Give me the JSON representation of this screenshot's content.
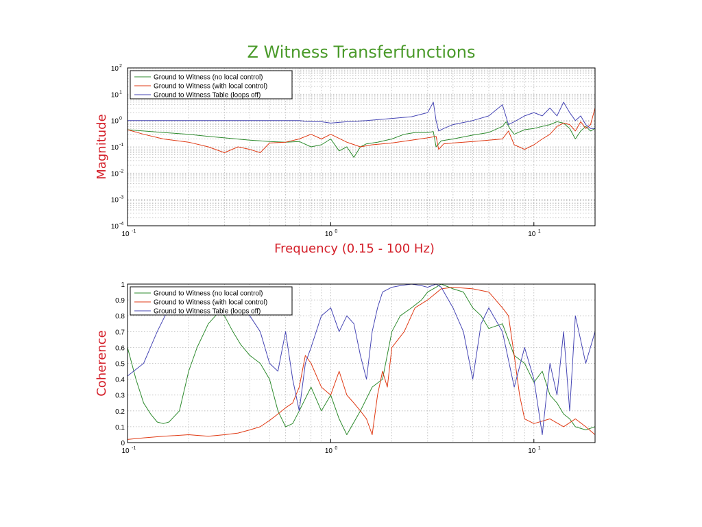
{
  "title": "Z Witness Transferfunctions",
  "colors": {
    "title": "#4a9a2a",
    "axis_label": "#d4202a",
    "series": [
      "#2e8b2e",
      "#e03a14",
      "#4646b4"
    ]
  },
  "chart_data": [
    {
      "type": "line",
      "name": "magnitude",
      "title": "Z Witness Transferfunctions",
      "xlabel": "Frequency (0.15 - 100 Hz)",
      "ylabel": "Magnitude",
      "xscale": "log",
      "yscale": "log",
      "xlim": [
        0.1,
        20
      ],
      "ylim": [
        0.0001,
        100
      ],
      "grid": true,
      "legend_position": "top-left",
      "x_ticks": [
        {
          "base": "10",
          "exp": "-1"
        },
        {
          "base": "10",
          "exp": "0"
        },
        {
          "base": "10",
          "exp": "1"
        }
      ],
      "y_ticks": [
        {
          "base": "10",
          "exp": "2"
        },
        {
          "base": "10",
          "exp": "1"
        },
        {
          "base": "10",
          "exp": "0"
        },
        {
          "base": "10",
          "exp": "-1"
        },
        {
          "base": "10",
          "exp": "-2"
        },
        {
          "base": "10",
          "exp": "-3"
        },
        {
          "base": "10",
          "exp": "-4"
        }
      ],
      "series": [
        {
          "name": "Ground to Witness (no local control)",
          "x": [
            0.1,
            0.12,
            0.15,
            0.2,
            0.25,
            0.3,
            0.4,
            0.5,
            0.6,
            0.7,
            0.8,
            0.9,
            1.0,
            1.1,
            1.2,
            1.3,
            1.4,
            1.5,
            1.7,
            2.0,
            2.3,
            2.6,
            3.0,
            3.2,
            3.3,
            3.5,
            4.0,
            5.0,
            6.0,
            7.0,
            7.3,
            7.6,
            8.0,
            9.0,
            10.0,
            11.0,
            12.0,
            13.0,
            14.0,
            15.0,
            16.0,
            17.0,
            18.0,
            19.0,
            20.0
          ],
          "y": [
            0.45,
            0.4,
            0.35,
            0.3,
            0.25,
            0.22,
            0.18,
            0.16,
            0.15,
            0.16,
            0.1,
            0.12,
            0.2,
            0.07,
            0.1,
            0.04,
            0.1,
            0.13,
            0.15,
            0.2,
            0.3,
            0.35,
            0.35,
            0.38,
            0.1,
            0.17,
            0.2,
            0.28,
            0.35,
            0.6,
            0.9,
            0.5,
            0.3,
            0.45,
            0.5,
            0.6,
            0.7,
            0.9,
            0.8,
            0.5,
            0.2,
            0.4,
            0.6,
            0.4,
            0.5
          ]
        },
        {
          "name": "Ground to Witness (with local control)",
          "x": [
            0.1,
            0.12,
            0.15,
            0.2,
            0.25,
            0.3,
            0.35,
            0.4,
            0.45,
            0.5,
            0.6,
            0.7,
            0.8,
            0.9,
            1.0,
            1.2,
            1.4,
            1.6,
            2.0,
            2.5,
            3.0,
            3.3,
            3.4,
            3.6,
            4.0,
            5.0,
            6.0,
            7.0,
            7.5,
            8.0,
            9.0,
            10.0,
            11.0,
            12.0,
            13.0,
            14.0,
            15.0,
            16.0,
            17.0,
            18.0,
            19.0,
            20.0
          ],
          "y": [
            0.45,
            0.3,
            0.2,
            0.15,
            0.1,
            0.06,
            0.1,
            0.08,
            0.06,
            0.14,
            0.15,
            0.2,
            0.3,
            0.2,
            0.3,
            0.15,
            0.1,
            0.12,
            0.14,
            0.18,
            0.22,
            0.25,
            0.08,
            0.13,
            0.14,
            0.16,
            0.18,
            0.2,
            0.4,
            0.12,
            0.08,
            0.12,
            0.2,
            0.3,
            0.6,
            0.8,
            0.7,
            0.4,
            0.9,
            0.5,
            0.7,
            3.0
          ]
        },
        {
          "name": "Ground to Witness Table (loops off)",
          "x": [
            0.1,
            0.15,
            0.2,
            0.3,
            0.4,
            0.5,
            0.6,
            0.7,
            0.8,
            0.9,
            1.0,
            1.2,
            1.5,
            2.0,
            2.5,
            3.0,
            3.2,
            3.3,
            3.4,
            3.6,
            4.0,
            5.0,
            6.0,
            7.0,
            7.5,
            8.0,
            9.0,
            10.0,
            11.0,
            12.0,
            13.0,
            14.0,
            15.0,
            16.0,
            17.0,
            18.0,
            19.0,
            20.0
          ],
          "y": [
            1.0,
            1.0,
            1.0,
            1.0,
            1.0,
            1.0,
            1.0,
            1.0,
            0.9,
            0.9,
            0.8,
            0.9,
            1.0,
            1.2,
            1.4,
            2.0,
            5.0,
            1.0,
            0.4,
            0.5,
            0.7,
            1.0,
            1.5,
            4.0,
            0.7,
            0.9,
            1.5,
            2.0,
            1.5,
            3.0,
            1.5,
            5.0,
            2.0,
            1.0,
            1.5,
            0.7,
            0.5,
            0.5
          ]
        }
      ]
    },
    {
      "type": "line",
      "name": "coherence",
      "title": "",
      "xlabel": "",
      "ylabel": "Coherence",
      "xscale": "log",
      "yscale": "linear",
      "xlim": [
        0.1,
        20
      ],
      "ylim": [
        0,
        1
      ],
      "grid": true,
      "legend_position": "top-left",
      "x_ticks": [
        {
          "base": "10",
          "exp": "-1"
        },
        {
          "base": "10",
          "exp": "0"
        },
        {
          "base": "10",
          "exp": "1"
        }
      ],
      "y_ticks": [
        "0",
        "0.1",
        "0.2",
        "0.3",
        "0.4",
        "0.5",
        "0.6",
        "0.7",
        "0.8",
        "0.9",
        "1"
      ],
      "series": [
        {
          "name": "Ground to Witness (no local control)",
          "x": [
            0.1,
            0.11,
            0.12,
            0.13,
            0.14,
            0.15,
            0.16,
            0.18,
            0.2,
            0.22,
            0.25,
            0.28,
            0.3,
            0.33,
            0.36,
            0.4,
            0.45,
            0.5,
            0.55,
            0.6,
            0.65,
            0.7,
            0.8,
            0.9,
            1.0,
            1.1,
            1.2,
            1.4,
            1.6,
            1.8,
            2.0,
            2.2,
            2.5,
            2.8,
            3.0,
            3.3,
            3.5,
            4.0,
            4.5,
            5.0,
            5.5,
            6.0,
            7.0,
            8.0,
            9.0,
            10.0,
            11.0,
            12.0,
            13.0,
            14.0,
            15.0,
            16.0,
            18.0,
            20.0
          ],
          "y": [
            0.6,
            0.4,
            0.25,
            0.18,
            0.13,
            0.12,
            0.13,
            0.2,
            0.45,
            0.6,
            0.75,
            0.82,
            0.8,
            0.7,
            0.62,
            0.55,
            0.5,
            0.4,
            0.2,
            0.1,
            0.12,
            0.2,
            0.35,
            0.2,
            0.3,
            0.15,
            0.05,
            0.2,
            0.35,
            0.4,
            0.7,
            0.8,
            0.85,
            0.9,
            0.95,
            0.98,
            1.0,
            0.97,
            0.95,
            0.85,
            0.8,
            0.72,
            0.75,
            0.55,
            0.5,
            0.38,
            0.45,
            0.3,
            0.25,
            0.18,
            0.15,
            0.1,
            0.08,
            0.1
          ]
        },
        {
          "name": "Ground to Witness (with local control)",
          "x": [
            0.1,
            0.12,
            0.15,
            0.2,
            0.25,
            0.3,
            0.35,
            0.4,
            0.45,
            0.5,
            0.55,
            0.6,
            0.65,
            0.7,
            0.75,
            0.8,
            0.9,
            1.0,
            1.1,
            1.2,
            1.3,
            1.4,
            1.5,
            1.6,
            1.7,
            1.8,
            1.9,
            2.0,
            2.3,
            2.6,
            3.0,
            3.5,
            4.0,
            5.0,
            6.0,
            7.0,
            7.5,
            8.0,
            8.5,
            9.0,
            10.0,
            12.0,
            14.0,
            16.0,
            18.0,
            20.0
          ],
          "y": [
            0.02,
            0.03,
            0.04,
            0.05,
            0.04,
            0.05,
            0.06,
            0.08,
            0.1,
            0.14,
            0.18,
            0.22,
            0.25,
            0.35,
            0.55,
            0.5,
            0.35,
            0.3,
            0.45,
            0.3,
            0.25,
            0.2,
            0.15,
            0.05,
            0.3,
            0.45,
            0.35,
            0.6,
            0.7,
            0.85,
            0.9,
            0.97,
            0.98,
            0.97,
            0.95,
            0.85,
            0.8,
            0.55,
            0.3,
            0.15,
            0.12,
            0.15,
            0.1,
            0.15,
            0.1,
            0.05
          ]
        },
        {
          "name": "Ground to Witness Table (loops off)",
          "x": [
            0.1,
            0.12,
            0.14,
            0.16,
            0.18,
            0.2,
            0.25,
            0.3,
            0.35,
            0.4,
            0.45,
            0.5,
            0.55,
            0.6,
            0.65,
            0.7,
            0.75,
            0.8,
            0.9,
            1.0,
            1.1,
            1.2,
            1.3,
            1.4,
            1.5,
            1.6,
            1.7,
            1.8,
            2.0,
            2.2,
            2.5,
            2.8,
            3.0,
            3.3,
            3.5,
            4.0,
            4.5,
            5.0,
            5.5,
            6.0,
            7.0,
            8.0,
            9.0,
            10.0,
            11.0,
            12.0,
            13.0,
            14.0,
            15.0,
            16.0,
            18.0,
            20.0
          ],
          "y": [
            0.42,
            0.5,
            0.7,
            0.85,
            0.93,
            0.98,
            0.97,
            0.95,
            0.9,
            0.8,
            0.7,
            0.5,
            0.45,
            0.7,
            0.4,
            0.2,
            0.5,
            0.6,
            0.8,
            0.85,
            0.7,
            0.8,
            0.75,
            0.55,
            0.4,
            0.7,
            0.85,
            0.95,
            0.98,
            0.99,
            1.0,
            0.99,
            0.98,
            1.0,
            0.98,
            0.85,
            0.7,
            0.4,
            0.75,
            0.85,
            0.7,
            0.35,
            0.6,
            0.4,
            0.05,
            0.5,
            0.3,
            0.7,
            0.2,
            0.8,
            0.5,
            0.7
          ]
        }
      ]
    }
  ]
}
